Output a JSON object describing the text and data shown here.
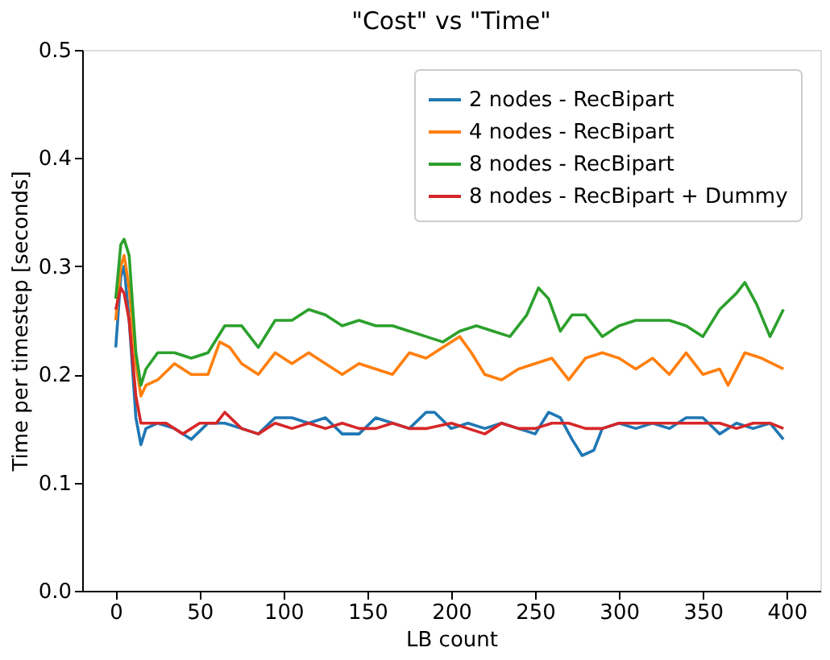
{
  "chart_data": {
    "type": "line",
    "title": "\"Cost\" vs \"Time\"",
    "xlabel": "LB count",
    "ylabel": "Time per timestep [seconds]",
    "xlim": [
      -20,
      420
    ],
    "xticks": [
      0,
      50,
      100,
      150,
      200,
      250,
      300,
      350,
      400
    ],
    "ylim": [
      0,
      0.5
    ],
    "yticks": [
      {
        "value": 0,
        "label": "0.0"
      },
      {
        "value": 0.1,
        "label": "0.1"
      },
      {
        "value": 0.2,
        "label": "0.2"
      },
      {
        "value": 0.3,
        "label": "0.3"
      },
      {
        "value": 0.4,
        "label": "0.4"
      },
      {
        "value": 0.5,
        "label": "0.5"
      }
    ],
    "grid": false,
    "legend": "top right",
    "line_style": "solid",
    "marker": "none",
    "series": [
      {
        "name": "2 nodes - RecBipart",
        "color": "#1f77b4",
        "x": [
          0,
          3,
          5,
          8,
          12,
          15,
          18,
          25,
          35,
          45,
          55,
          65,
          75,
          85,
          95,
          105,
          115,
          125,
          135,
          145,
          155,
          165,
          175,
          185,
          190,
          200,
          210,
          220,
          230,
          240,
          250,
          258,
          265,
          272,
          278,
          285,
          290,
          300,
          310,
          320,
          330,
          340,
          350,
          360,
          370,
          380,
          390,
          398
        ],
        "values": [
          0.225,
          0.29,
          0.3,
          0.25,
          0.16,
          0.135,
          0.15,
          0.155,
          0.15,
          0.14,
          0.155,
          0.155,
          0.15,
          0.145,
          0.16,
          0.16,
          0.155,
          0.16,
          0.145,
          0.145,
          0.16,
          0.155,
          0.15,
          0.165,
          0.165,
          0.15,
          0.155,
          0.15,
          0.155,
          0.15,
          0.145,
          0.165,
          0.16,
          0.14,
          0.125,
          0.13,
          0.15,
          0.155,
          0.15,
          0.155,
          0.15,
          0.16,
          0.16,
          0.145,
          0.155,
          0.15,
          0.155,
          0.14
        ]
      },
      {
        "name": "4 nodes - RecBipart",
        "color": "#ff7f0e",
        "x": [
          0,
          3,
          5,
          8,
          12,
          15,
          18,
          25,
          35,
          45,
          55,
          62,
          68,
          75,
          85,
          95,
          105,
          115,
          125,
          135,
          145,
          155,
          165,
          175,
          185,
          195,
          205,
          212,
          220,
          230,
          240,
          250,
          260,
          270,
          280,
          290,
          300,
          310,
          320,
          330,
          340,
          350,
          360,
          365,
          375,
          385,
          398
        ],
        "values": [
          0.25,
          0.3,
          0.31,
          0.28,
          0.21,
          0.18,
          0.19,
          0.195,
          0.21,
          0.2,
          0.2,
          0.23,
          0.225,
          0.21,
          0.2,
          0.22,
          0.21,
          0.22,
          0.21,
          0.2,
          0.21,
          0.205,
          0.2,
          0.22,
          0.215,
          0.225,
          0.235,
          0.22,
          0.2,
          0.195,
          0.205,
          0.21,
          0.215,
          0.195,
          0.215,
          0.22,
          0.215,
          0.205,
          0.215,
          0.2,
          0.22,
          0.2,
          0.205,
          0.19,
          0.22,
          0.215,
          0.205
        ]
      },
      {
        "name": "8 nodes - RecBipart",
        "color": "#2ca02c",
        "x": [
          0,
          3,
          5,
          8,
          12,
          15,
          18,
          25,
          35,
          45,
          55,
          65,
          75,
          85,
          95,
          105,
          115,
          125,
          135,
          145,
          155,
          165,
          175,
          185,
          195,
          205,
          215,
          225,
          235,
          245,
          252,
          258,
          265,
          272,
          280,
          290,
          300,
          310,
          320,
          330,
          340,
          350,
          360,
          370,
          375,
          382,
          390,
          398
        ],
        "values": [
          0.27,
          0.32,
          0.325,
          0.31,
          0.22,
          0.19,
          0.205,
          0.22,
          0.22,
          0.215,
          0.22,
          0.245,
          0.245,
          0.225,
          0.25,
          0.25,
          0.26,
          0.255,
          0.245,
          0.25,
          0.245,
          0.245,
          0.24,
          0.235,
          0.23,
          0.24,
          0.245,
          0.24,
          0.235,
          0.255,
          0.28,
          0.27,
          0.24,
          0.255,
          0.255,
          0.235,
          0.245,
          0.25,
          0.25,
          0.25,
          0.245,
          0.235,
          0.26,
          0.275,
          0.285,
          0.265,
          0.235,
          0.26
        ]
      },
      {
        "name": "8 nodes - RecBipart + Dummy",
        "color": "#d62728",
        "x": [
          0,
          3,
          5,
          8,
          12,
          15,
          20,
          30,
          40,
          50,
          60,
          65,
          75,
          85,
          95,
          105,
          115,
          125,
          135,
          145,
          155,
          165,
          175,
          185,
          200,
          210,
          220,
          230,
          240,
          250,
          260,
          270,
          280,
          290,
          300,
          310,
          320,
          330,
          340,
          350,
          360,
          370,
          380,
          390,
          398
        ],
        "values": [
          0.26,
          0.28,
          0.275,
          0.25,
          0.18,
          0.155,
          0.155,
          0.155,
          0.145,
          0.155,
          0.155,
          0.165,
          0.15,
          0.145,
          0.155,
          0.15,
          0.155,
          0.15,
          0.155,
          0.15,
          0.15,
          0.155,
          0.15,
          0.15,
          0.155,
          0.15,
          0.145,
          0.155,
          0.15,
          0.15,
          0.155,
          0.155,
          0.15,
          0.15,
          0.155,
          0.155,
          0.155,
          0.155,
          0.155,
          0.155,
          0.155,
          0.15,
          0.155,
          0.155,
          0.15
        ]
      }
    ]
  }
}
